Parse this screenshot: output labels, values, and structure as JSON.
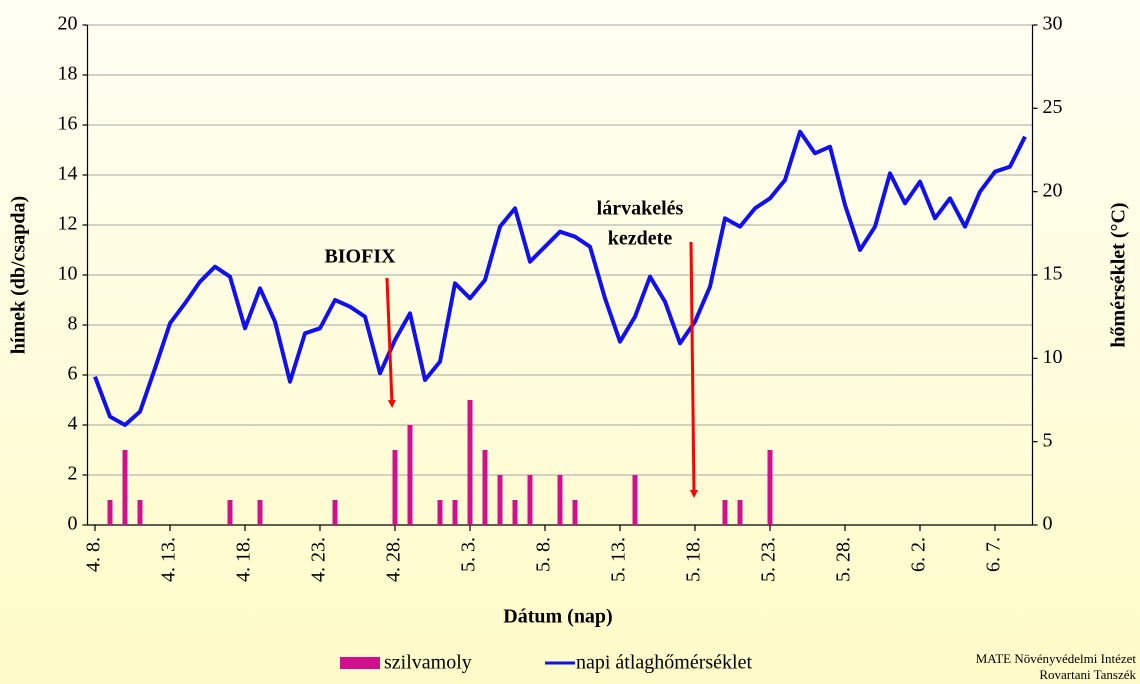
{
  "chart_data": {
    "type": "bar_line",
    "ylabel": "hímek (db/csapda)",
    "y2label": "hőmérséklet (°C)",
    "xlabel": "Dátum (nap)",
    "categories": [
      "4. 8.",
      null,
      null,
      null,
      null,
      "4. 13.",
      null,
      null,
      null,
      null,
      "4. 18.",
      null,
      null,
      null,
      null,
      "4. 23.",
      null,
      null,
      null,
      null,
      "4. 28.",
      null,
      null,
      null,
      null,
      "5. 3.",
      null,
      null,
      null,
      null,
      "5. 8.",
      null,
      null,
      null,
      null,
      "5. 13.",
      null,
      null,
      null,
      null,
      "5. 18.",
      null,
      null,
      null,
      null,
      "5. 23.",
      null,
      null,
      null,
      null,
      "5. 28.",
      null,
      null,
      null,
      null,
      "6. 2.",
      null,
      null,
      null,
      null,
      "6. 7.",
      null,
      null
    ],
    "series": [
      {
        "name": "szilvamoly",
        "type": "bar",
        "color": "#d0108f",
        "axis": "y",
        "values": [
          0,
          1,
          3,
          1,
          0,
          0,
          0,
          0,
          0,
          1,
          0,
          1,
          0,
          0,
          0,
          0,
          1,
          0,
          0,
          0,
          3,
          4,
          0,
          1,
          1,
          5,
          3,
          2,
          1,
          2,
          0,
          2,
          1,
          0,
          0,
          0,
          2,
          0,
          0,
          0,
          0,
          0,
          1,
          1,
          0,
          3,
          0,
          0,
          0,
          0,
          0,
          0,
          0,
          0,
          0,
          0,
          0,
          0,
          0,
          0,
          0,
          0,
          0
        ]
      },
      {
        "name": "napi átlaghőmérséklet",
        "type": "line",
        "color": "#1010f0",
        "axis": "y2",
        "values": [
          8.9,
          6.5,
          6.0,
          6.8,
          9.4,
          12.1,
          13.3,
          14.6,
          15.5,
          14.9,
          11.8,
          14.2,
          12.2,
          8.6,
          11.5,
          11.8,
          13.5,
          13.1,
          12.5,
          9.1,
          11.1,
          12.7,
          8.7,
          9.8,
          14.5,
          13.6,
          14.7,
          17.9,
          19.0,
          15.8,
          16.7,
          17.6,
          17.3,
          16.7,
          13.6,
          11.0,
          12.5,
          14.9,
          13.4,
          10.9,
          12.2,
          14.3,
          18.4,
          17.9,
          19.0,
          19.6,
          20.7,
          23.6,
          22.3,
          22.7,
          19.2,
          16.5,
          17.9,
          21.1,
          19.3,
          20.6,
          18.4,
          19.6,
          17.9,
          20.0,
          21.2,
          21.5,
          23.3
        ]
      }
    ],
    "ylim": [
      0,
      20
    ],
    "yticks": [
      0,
      2,
      4,
      6,
      8,
      10,
      12,
      14,
      16,
      18,
      20
    ],
    "y2lim": [
      0,
      30
    ],
    "y2ticks": [
      0,
      5,
      10,
      15,
      20,
      25,
      30
    ],
    "grid": true,
    "legend": "bottom",
    "annotations": [
      {
        "text": "BIOFIX",
        "color": "#ff0000"
      },
      {
        "text": [
          "lárvakelés",
          "kezdete"
        ],
        "color": "#ff0000"
      }
    ],
    "source": [
      "MATE Növényvédelmi Intézet",
      "Rovartani Tanszék"
    ]
  }
}
